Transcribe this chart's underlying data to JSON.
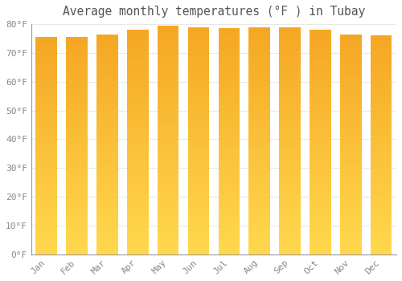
{
  "title": "Average monthly temperatures (°F ) in Tubay",
  "months": [
    "Jan",
    "Feb",
    "Mar",
    "Apr",
    "May",
    "Jun",
    "Jul",
    "Aug",
    "Sep",
    "Oct",
    "Nov",
    "Dec"
  ],
  "values": [
    75.5,
    75.5,
    76.5,
    78.0,
    79.5,
    79.0,
    78.5,
    79.0,
    79.0,
    78.0,
    76.5,
    76.0
  ],
  "color_top": "#F5A623",
  "color_bottom": "#FFD84D",
  "ylim": [
    0,
    80
  ],
  "yticks": [
    0,
    10,
    20,
    30,
    40,
    50,
    60,
    70,
    80
  ],
  "ytick_labels": [
    "0°F",
    "10°F",
    "20°F",
    "30°F",
    "40°F",
    "50°F",
    "60°F",
    "70°F",
    "80°F"
  ],
  "background_color": "#ffffff",
  "grid_color": "#e8e8e8",
  "title_fontsize": 10.5,
  "tick_fontsize": 8,
  "bar_width": 0.7
}
